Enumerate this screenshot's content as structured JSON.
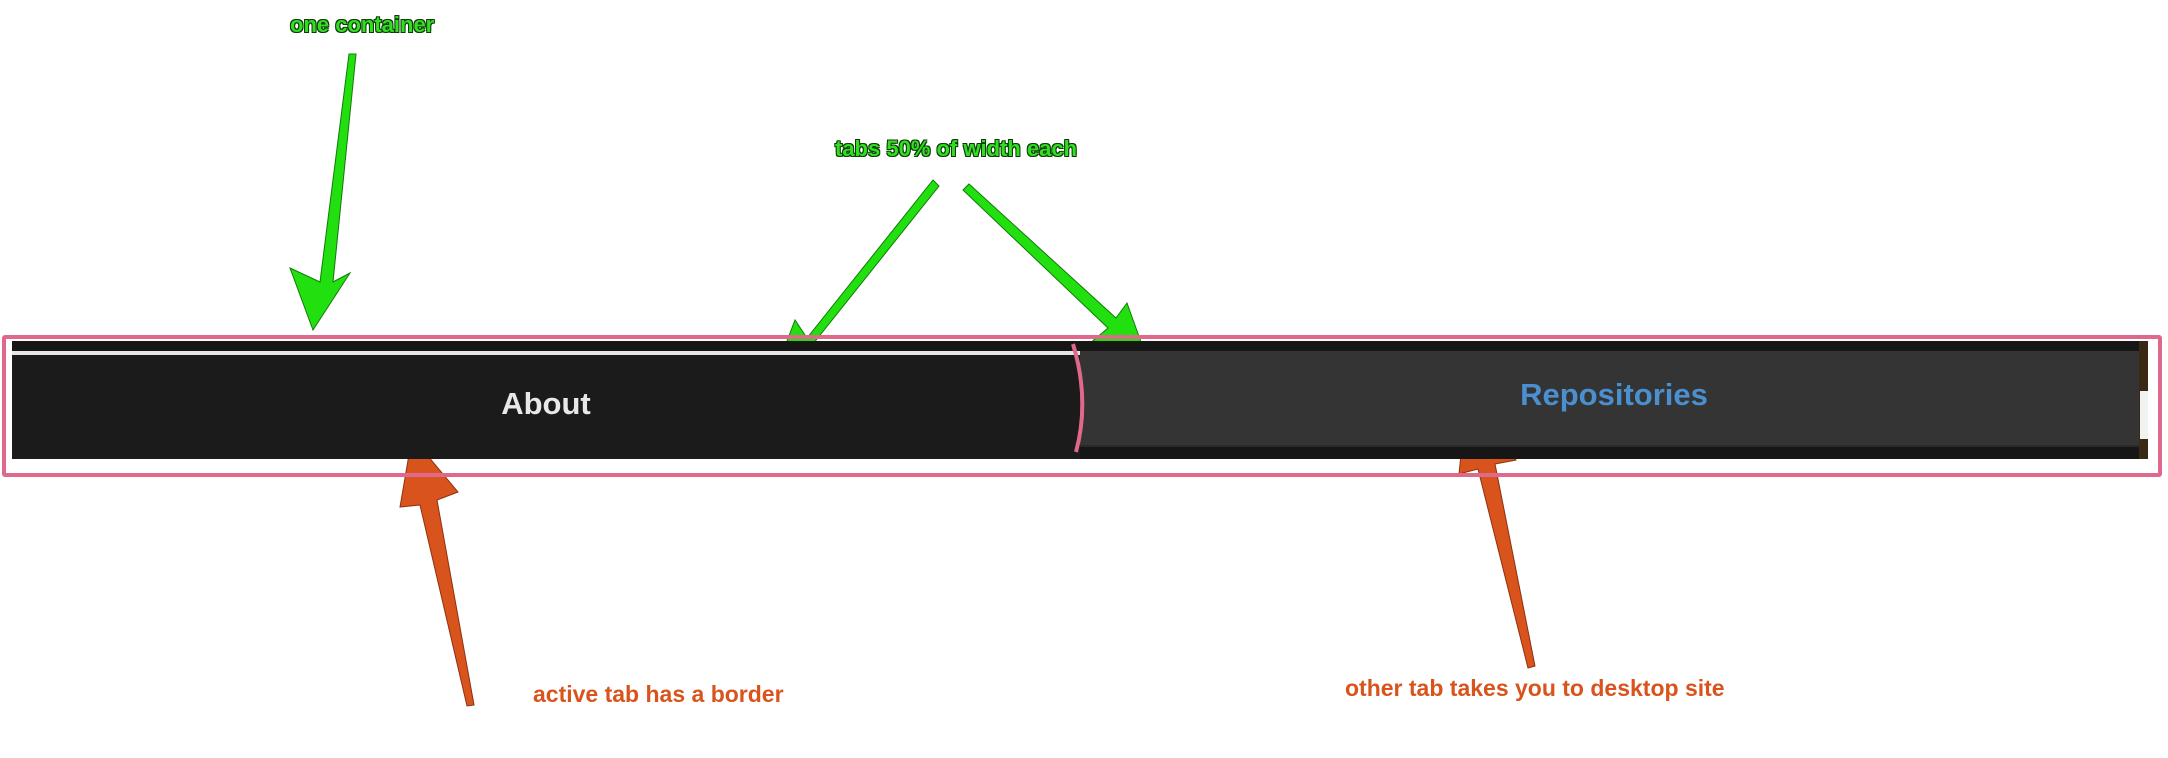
{
  "tabs": [
    {
      "label": "About",
      "active": true
    },
    {
      "label": "Repositories",
      "active": false
    }
  ],
  "annotations": {
    "container": "one container",
    "tab_width": "tabs 50% of width each",
    "active_tab": "active tab has a border",
    "other_tab": "other tab takes you to desktop site"
  },
  "colors": {
    "annotation_green": "#33dd22",
    "annotation_orange": "#d9541c",
    "outline_pink": "#e0688a",
    "active_tab_bg": "#1b1b1b",
    "inactive_tab_bg": "#343434",
    "inactive_tab_text": "#4a8fd0",
    "active_tab_text": "#e8e8e8"
  }
}
